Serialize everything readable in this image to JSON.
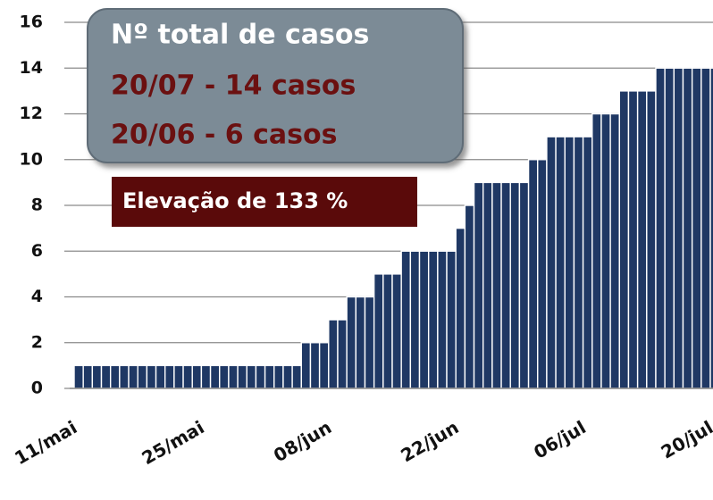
{
  "chart_data": {
    "type": "bar",
    "annotations": [
      "Nº total de casos",
      "20/07 - 14 casos",
      "20/06 - 6 casos",
      "Elevação de 133 %"
    ],
    "categories": [
      "11/mai",
      null,
      null,
      null,
      null,
      null,
      null,
      null,
      null,
      null,
      null,
      null,
      null,
      null,
      "25/mai",
      null,
      null,
      null,
      null,
      null,
      null,
      null,
      null,
      null,
      null,
      null,
      null,
      null,
      "08/jun",
      null,
      null,
      null,
      null,
      null,
      null,
      null,
      null,
      null,
      null,
      null,
      null,
      null,
      "22/jun",
      null,
      null,
      null,
      null,
      null,
      null,
      null,
      null,
      null,
      null,
      null,
      null,
      null,
      "06/jul",
      null,
      null,
      null,
      null,
      null,
      null,
      null,
      null,
      null,
      null,
      null,
      null,
      null,
      "20/jul"
    ],
    "values": [
      1,
      1,
      1,
      1,
      1,
      1,
      1,
      1,
      1,
      1,
      1,
      1,
      1,
      1,
      1,
      1,
      1,
      1,
      1,
      1,
      1,
      1,
      1,
      1,
      1,
      2,
      2,
      2,
      3,
      3,
      4,
      4,
      4,
      5,
      5,
      5,
      6,
      6,
      6,
      6,
      6,
      6,
      7,
      8,
      9,
      9,
      9,
      9,
      9,
      9,
      10,
      10,
      11,
      11,
      11,
      11,
      11,
      12,
      12,
      12,
      13,
      13,
      13,
      13,
      14,
      14,
      14,
      14,
      14,
      14,
      14
    ],
    "color": "#1f3864",
    "ylim": [
      0,
      16
    ],
    "yticks": [
      0,
      2,
      4,
      6,
      8,
      10,
      12,
      14,
      16
    ],
    "grid": true
  }
}
